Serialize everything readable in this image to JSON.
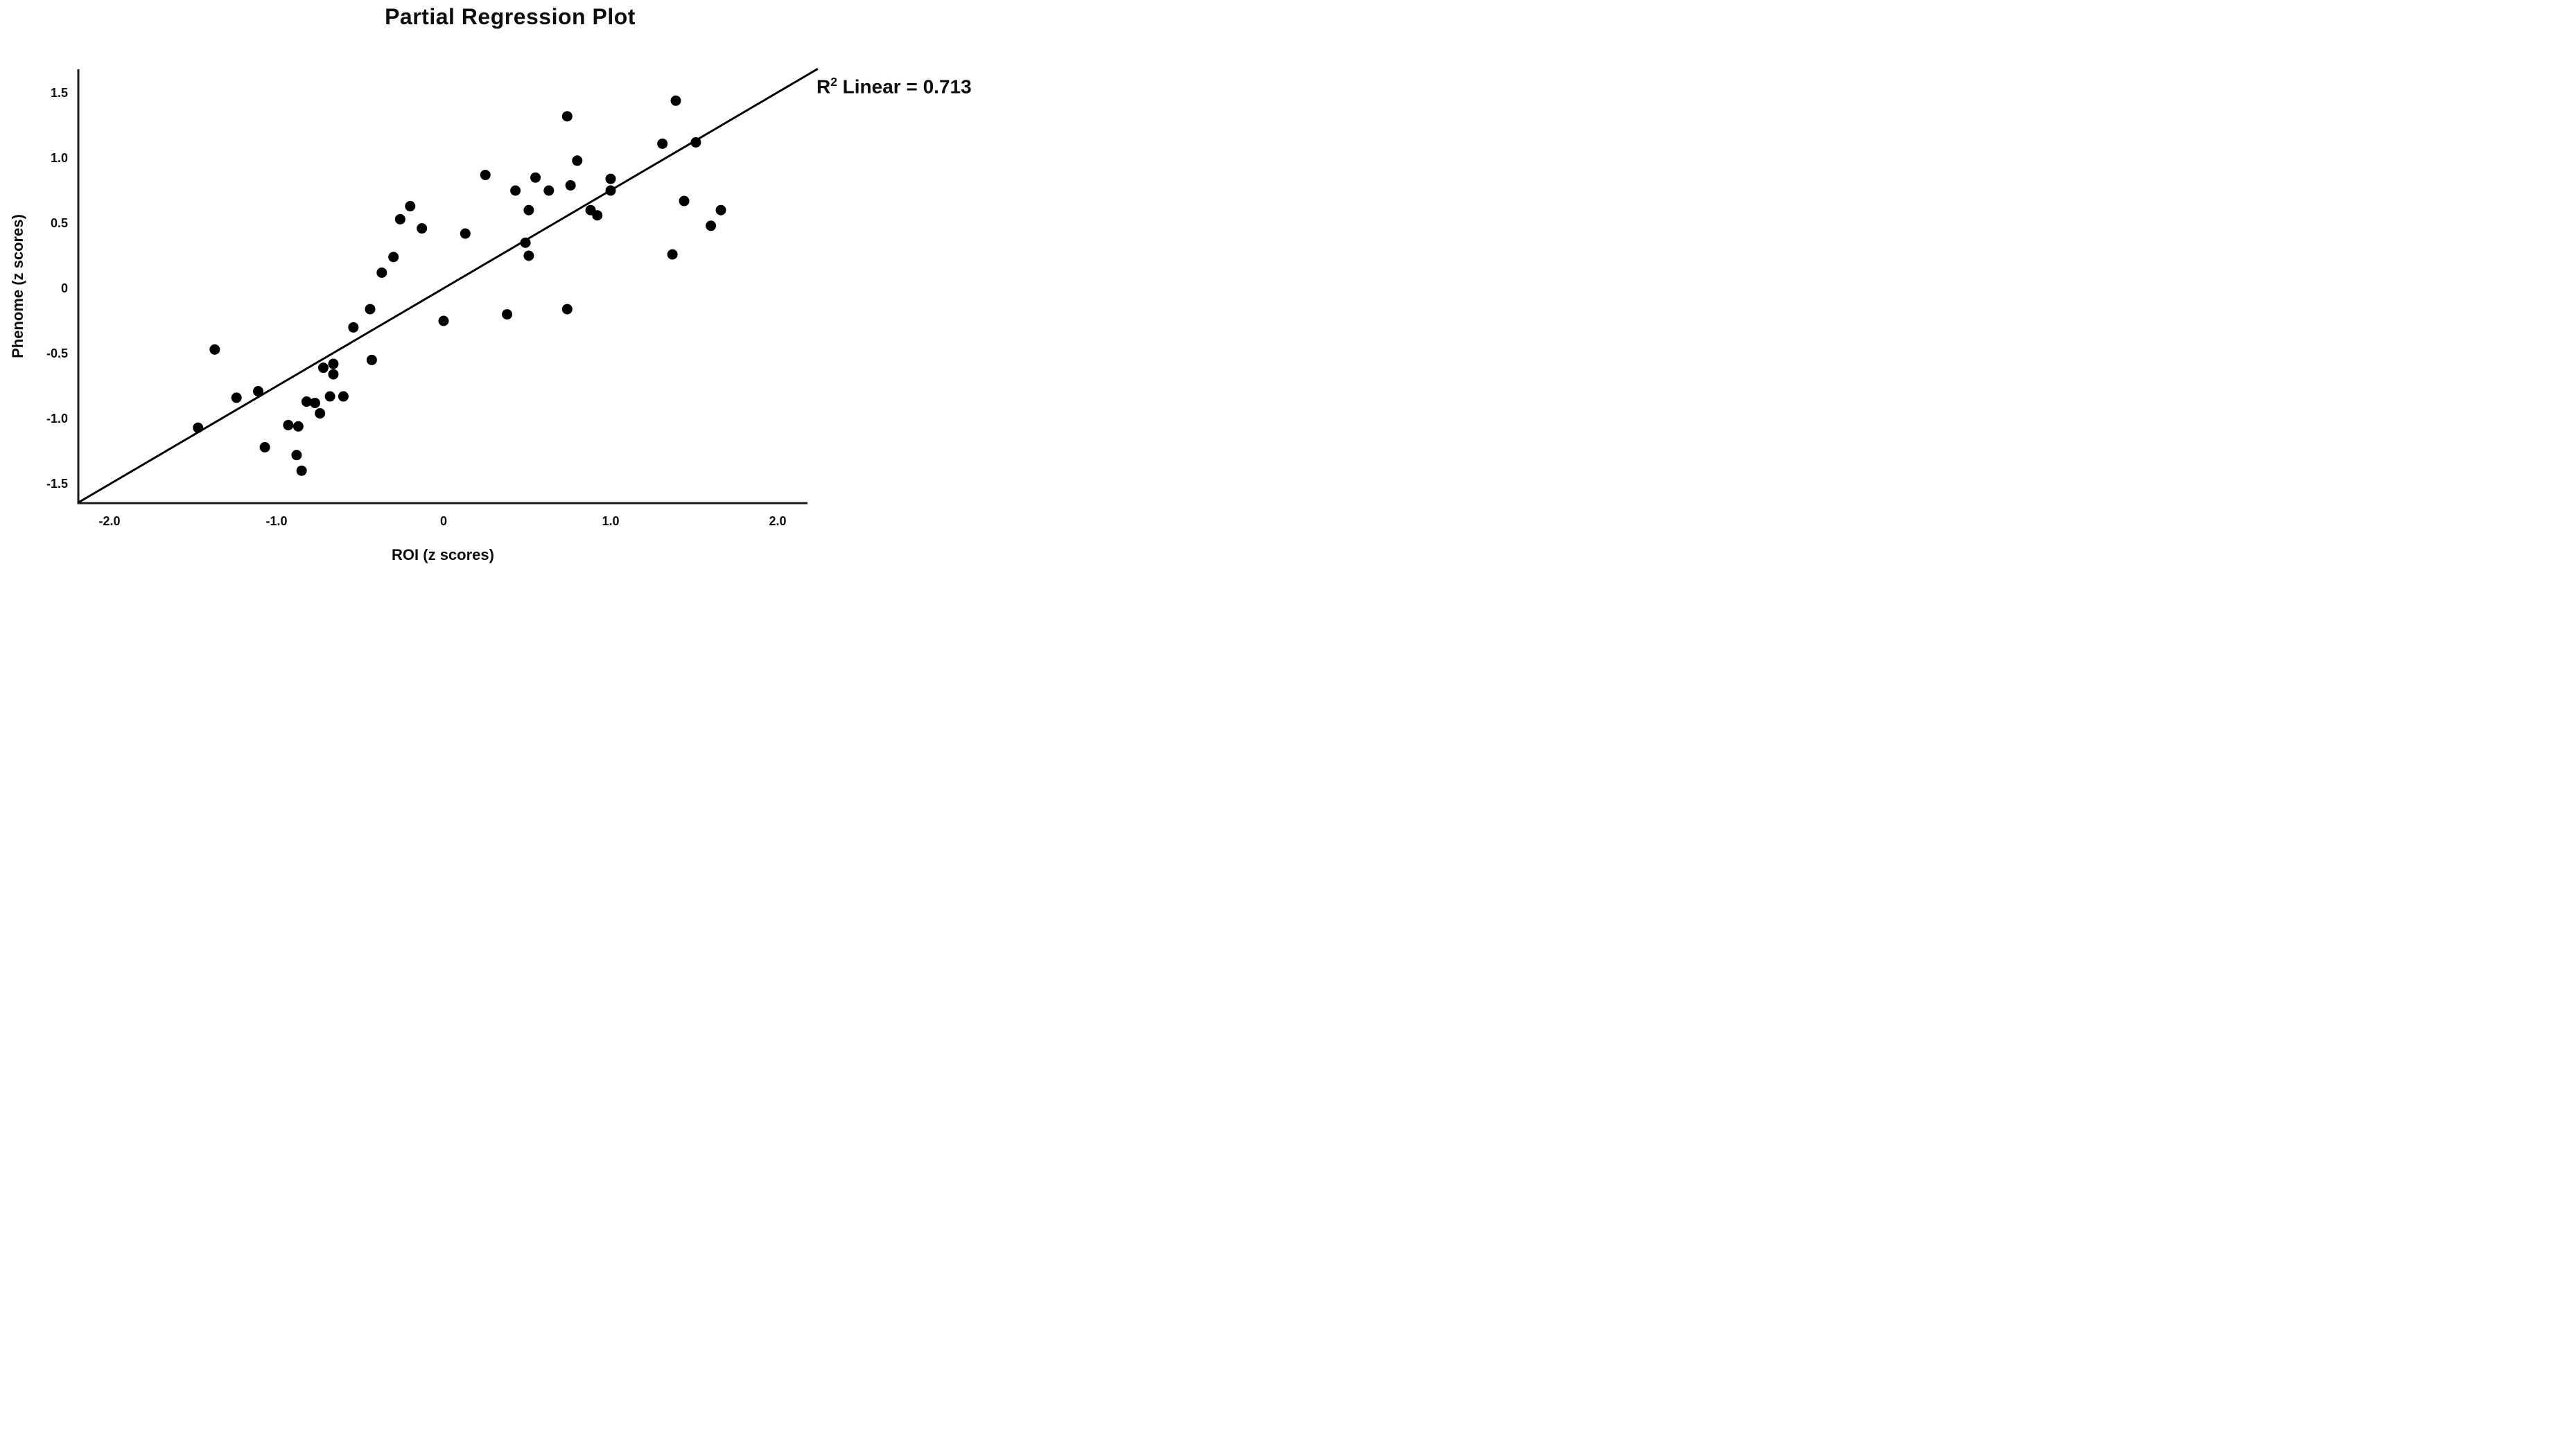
{
  "chart_data": {
    "type": "scatter",
    "title": "Partial Regression Plot",
    "xlabel": "ROI (z scores)",
    "ylabel": "Phenome (z scores)",
    "annotation": "R2 Linear = 0.713",
    "annotation_parts": {
      "base": "R",
      "superscript": "2",
      "rest": " Linear = 0.713"
    },
    "r_squared": 0.713,
    "xlim": [
      -2.19,
      2.24
    ],
    "ylim": [
      -1.65,
      1.68
    ],
    "grid": false,
    "legend": "none",
    "background_color": "#ffffff",
    "point_color": "#000000",
    "line_color": "#000000",
    "axis_color": "#1a1a1a",
    "x_ticks": [
      {
        "value": -2.0,
        "label": "-2.0"
      },
      {
        "value": -1.0,
        "label": "-1.0"
      },
      {
        "value": 0.0,
        "label": "0"
      },
      {
        "value": 1.0,
        "label": "1.0"
      },
      {
        "value": 2.0,
        "label": "2.0"
      }
    ],
    "y_ticks": [
      {
        "value": 1.5,
        "label": "1.5"
      },
      {
        "value": 1.0,
        "label": "1.0"
      },
      {
        "value": 0.5,
        "label": "0.5"
      },
      {
        "value": 0.0,
        "label": "0"
      },
      {
        "value": -0.5,
        "label": "-0.5"
      },
      {
        "value": -1.0,
        "label": "-1.0"
      },
      {
        "value": -1.5,
        "label": "-1.5"
      }
    ],
    "regression_line": {
      "slope": 0.752,
      "intercept": 0.0,
      "x_start": -2.19,
      "x_end": 2.24
    },
    "points": [
      [
        -1.47,
        -1.07
      ],
      [
        -1.37,
        -0.47
      ],
      [
        -1.24,
        -0.84
      ],
      [
        -1.11,
        -0.79
      ],
      [
        -1.07,
        -1.22
      ],
      [
        -0.93,
        -1.05
      ],
      [
        -0.87,
        -1.06
      ],
      [
        -0.88,
        -1.28
      ],
      [
        -0.85,
        -1.4
      ],
      [
        -0.82,
        -0.87
      ],
      [
        -0.77,
        -0.88
      ],
      [
        -0.74,
        -0.96
      ],
      [
        -0.68,
        -0.83
      ],
      [
        -0.6,
        -0.83
      ],
      [
        -0.72,
        -0.61
      ],
      [
        -0.66,
        -0.58
      ],
      [
        -0.66,
        -0.66
      ],
      [
        -0.43,
        -0.55
      ],
      [
        -0.54,
        -0.3
      ],
      [
        -0.44,
        -0.16
      ],
      [
        -0.37,
        0.12
      ],
      [
        -0.3,
        0.24
      ],
      [
        -0.26,
        0.53
      ],
      [
        -0.2,
        0.63
      ],
      [
        -0.13,
        0.46
      ],
      [
        0.0,
        -0.25
      ],
      [
        0.13,
        0.42
      ],
      [
        0.25,
        0.87
      ],
      [
        0.38,
        -0.2
      ],
      [
        0.43,
        0.75
      ],
      [
        0.49,
        0.35
      ],
      [
        0.51,
        0.25
      ],
      [
        0.51,
        0.6
      ],
      [
        0.55,
        0.85
      ],
      [
        0.63,
        0.75
      ],
      [
        0.74,
        -0.16
      ],
      [
        0.74,
        1.32
      ],
      [
        0.76,
        0.79
      ],
      [
        0.8,
        0.98
      ],
      [
        0.88,
        0.6
      ],
      [
        0.92,
        0.56
      ],
      [
        1.0,
        0.84
      ],
      [
        1.0,
        0.75
      ],
      [
        1.31,
        1.11
      ],
      [
        1.51,
        1.12
      ],
      [
        1.39,
        1.44
      ],
      [
        1.44,
        0.67
      ],
      [
        1.66,
        0.6
      ],
      [
        1.6,
        0.48
      ],
      [
        1.37,
        0.26
      ]
    ]
  }
}
